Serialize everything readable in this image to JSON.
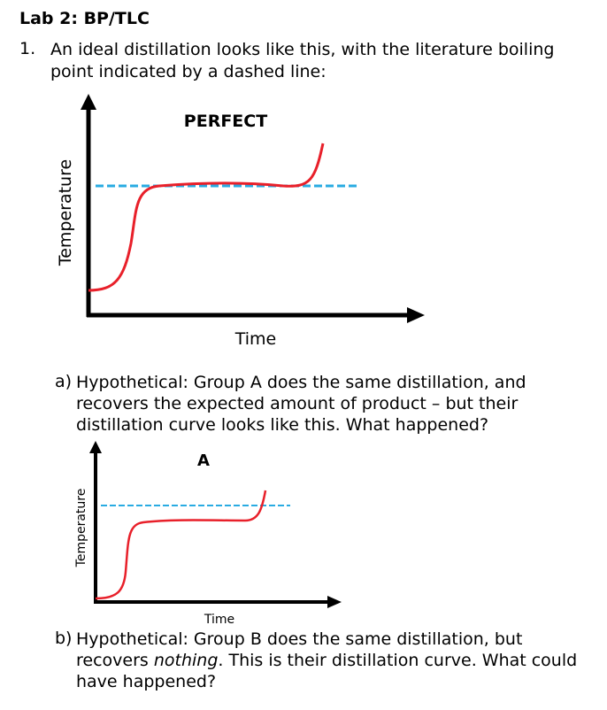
{
  "doc": {
    "title": "Lab 2: BP/TLC",
    "q1_number": "1.",
    "q1_text": "An ideal distillation looks like this, with the literature boiling point indicated by a dashed line:",
    "qa_label": "a)",
    "qa_text": "Hypothetical: Group A does the same distillation, and recovers the expected amount of product – but their distillation curve looks like this. What happened?",
    "qb_label": "b)",
    "qb_pre": "Hypothetical: Group B does the same distillation, but recovers ",
    "qb_em": "nothing",
    "qb_post": ". This is their distillation curve. What could have happened?"
  },
  "graphs": {
    "perfect": {
      "label": "PERFECT",
      "xlabel": "Time",
      "ylabel": "Temperature"
    },
    "a": {
      "label": "A",
      "xlabel": "Time",
      "ylabel": "Temperature"
    }
  },
  "colors": {
    "curve": "#e8202a",
    "dashed": "#29abe2",
    "axes": "#000000"
  }
}
